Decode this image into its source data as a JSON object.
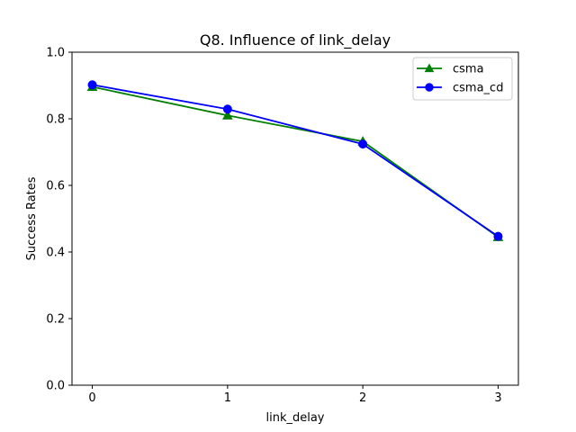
{
  "chart_data": {
    "type": "line",
    "title": "Q8. Influence of link_delay",
    "xlabel": "link_delay",
    "ylabel": "Success Rates",
    "x": [
      0,
      1,
      2,
      3
    ],
    "xlim": [
      -0.15,
      3.15
    ],
    "ylim": [
      0.0,
      1.0
    ],
    "x_ticks": [
      0,
      1,
      2,
      3
    ],
    "y_ticks": [
      0.0,
      0.2,
      0.4,
      0.6,
      0.8,
      1.0
    ],
    "x_tick_labels": [
      "0",
      "1",
      "2",
      "3"
    ],
    "y_tick_labels": [
      "0.0",
      "0.2",
      "0.4",
      "0.6",
      "0.8",
      "1.0"
    ],
    "grid": false,
    "legend_position": "top-right",
    "series": [
      {
        "name": "csma",
        "values": [
          0.896,
          0.81,
          0.732,
          0.445
        ],
        "color": "#008000",
        "marker": "triangle"
      },
      {
        "name": "csma_cd",
        "values": [
          0.902,
          0.829,
          0.724,
          0.447
        ],
        "color": "#0000ff",
        "marker": "circle"
      }
    ]
  }
}
